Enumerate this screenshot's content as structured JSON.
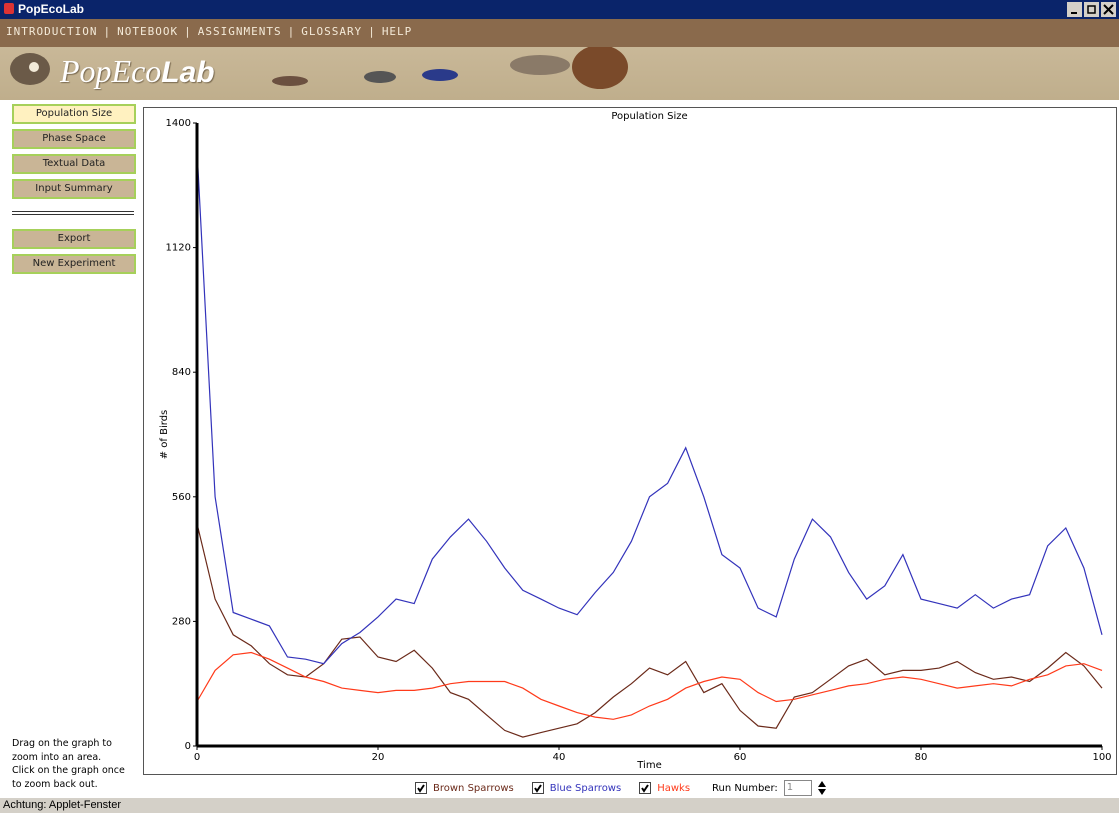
{
  "window_title": "PopEcoLab",
  "menu": {
    "items": [
      "INTRODUCTION",
      "NOTEBOOK",
      "ASSIGNMENTS",
      "GLOSSARY",
      "HELP"
    ],
    "separator": "|"
  },
  "logo": {
    "part1": "PopEco",
    "part2": "Lab"
  },
  "sidebar": {
    "views": [
      "Population Size",
      "Phase Space",
      "Textual Data",
      "Input Summary"
    ],
    "actions": [
      "Export",
      "New Experiment"
    ]
  },
  "help_text": [
    "Drag on the graph to",
    "zoom into an area.",
    "Click on the graph once",
    "to zoom back out."
  ],
  "run_number": {
    "label": "Run Number:",
    "value": 1
  },
  "status_bar": "Achtung: Applet-Fenster",
  "chart_data": {
    "type": "line",
    "title": "Population Size",
    "x_label": "Time",
    "y_label": "# of Birds",
    "x": [
      0,
      2,
      4,
      6,
      8,
      10,
      12,
      14,
      16,
      18,
      20,
      22,
      24,
      26,
      28,
      30,
      32,
      34,
      36,
      38,
      40,
      42,
      44,
      46,
      48,
      50,
      52,
      54,
      56,
      58,
      60,
      62,
      64,
      66,
      68,
      70,
      72,
      74,
      76,
      78,
      80,
      82,
      84,
      86,
      88,
      90,
      92,
      94,
      96,
      98,
      100
    ],
    "series": [
      {
        "name": "Brown Sparrows",
        "color": "#6b2a1a",
        "values": [
          500,
          330,
          250,
          225,
          185,
          160,
          155,
          185,
          240,
          245,
          200,
          190,
          215,
          175,
          120,
          105,
          70,
          35,
          20,
          30,
          40,
          50,
          75,
          110,
          140,
          175,
          160,
          190,
          120,
          140,
          80,
          45,
          40,
          110,
          120,
          150,
          180,
          195,
          160,
          170,
          170,
          175,
          190,
          165,
          150,
          155,
          145,
          175,
          210,
          180,
          130
        ]
      },
      {
        "name": "Blue Sparrows",
        "color": "#3333bb",
        "values": [
          1340,
          560,
          300,
          285,
          270,
          200,
          195,
          185,
          230,
          255,
          290,
          330,
          320,
          420,
          470,
          510,
          460,
          400,
          350,
          330,
          310,
          295,
          345,
          390,
          460,
          560,
          590,
          670,
          560,
          430,
          400,
          310,
          290,
          420,
          510,
          470,
          390,
          330,
          360,
          430,
          330,
          320,
          310,
          340,
          310,
          330,
          340,
          450,
          490,
          400,
          250
        ]
      },
      {
        "name": "Hawks",
        "color": "#ff3a1a",
        "values": [
          100,
          170,
          205,
          210,
          195,
          175,
          155,
          145,
          130,
          125,
          120,
          125,
          125,
          130,
          140,
          145,
          145,
          145,
          130,
          105,
          90,
          75,
          65,
          60,
          70,
          90,
          105,
          130,
          145,
          155,
          150,
          120,
          100,
          105,
          115,
          125,
          135,
          140,
          150,
          155,
          150,
          140,
          130,
          135,
          140,
          135,
          150,
          160,
          180,
          185,
          170
        ]
      }
    ],
    "xlim": [
      0,
      100
    ],
    "xticks": [
      0,
      20,
      40,
      60,
      80,
      100
    ],
    "ylim": [
      0,
      1400
    ],
    "yticks": [
      0,
      280,
      560,
      840,
      1120,
      1400
    ]
  }
}
